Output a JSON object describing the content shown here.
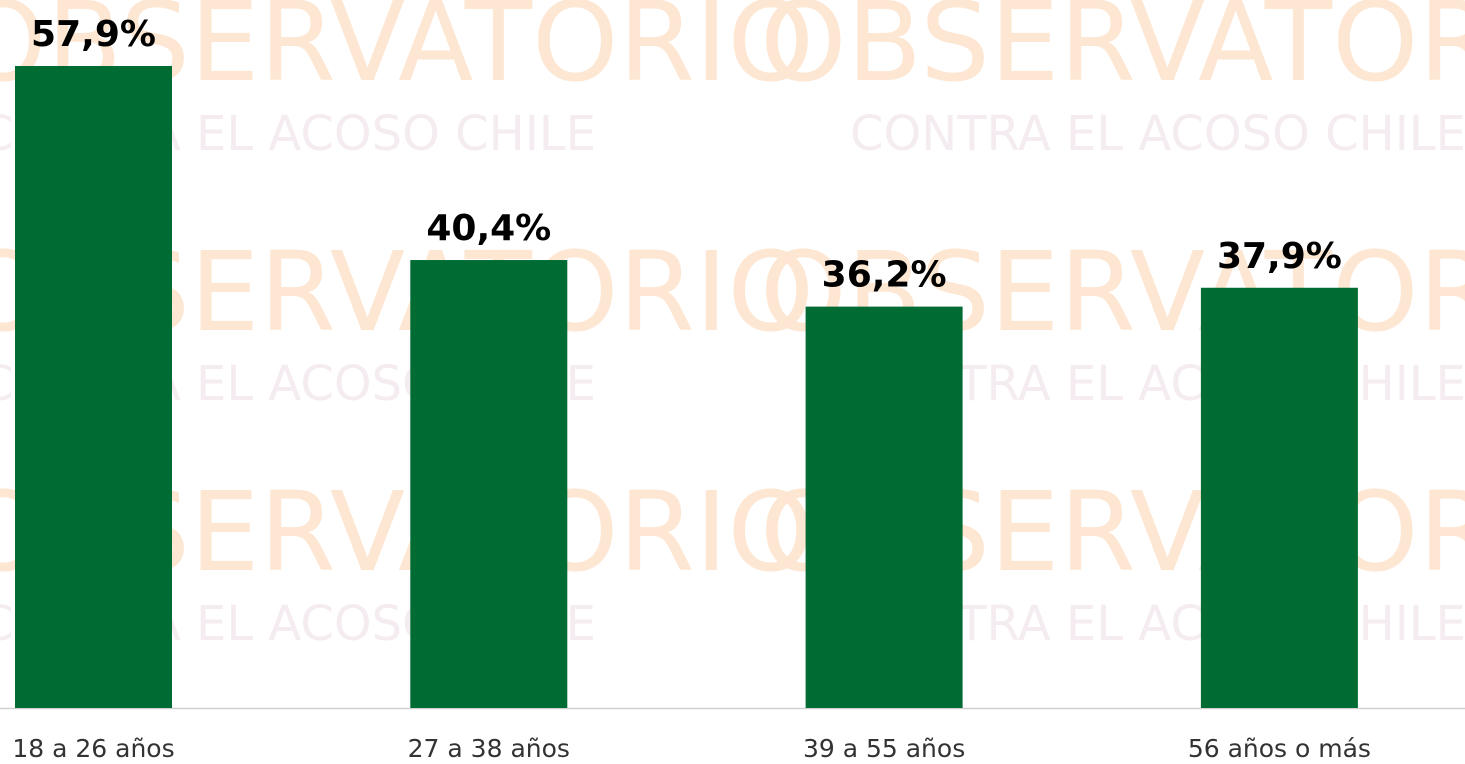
{
  "chart_data": {
    "type": "bar",
    "categories": [
      "18 a 26 años",
      "27 a 38 años",
      "39 a 55 años",
      "56 años o más"
    ],
    "values": [
      57.9,
      40.4,
      36.2,
      37.9
    ],
    "value_labels": [
      "57,9%",
      "40,4%",
      "36,2%",
      "37,9%"
    ],
    "color": "#006b33",
    "watermark": {
      "title": "OBSERVATORIO",
      "subtitle": "CONTRA EL ACOSO CHILE"
    }
  }
}
